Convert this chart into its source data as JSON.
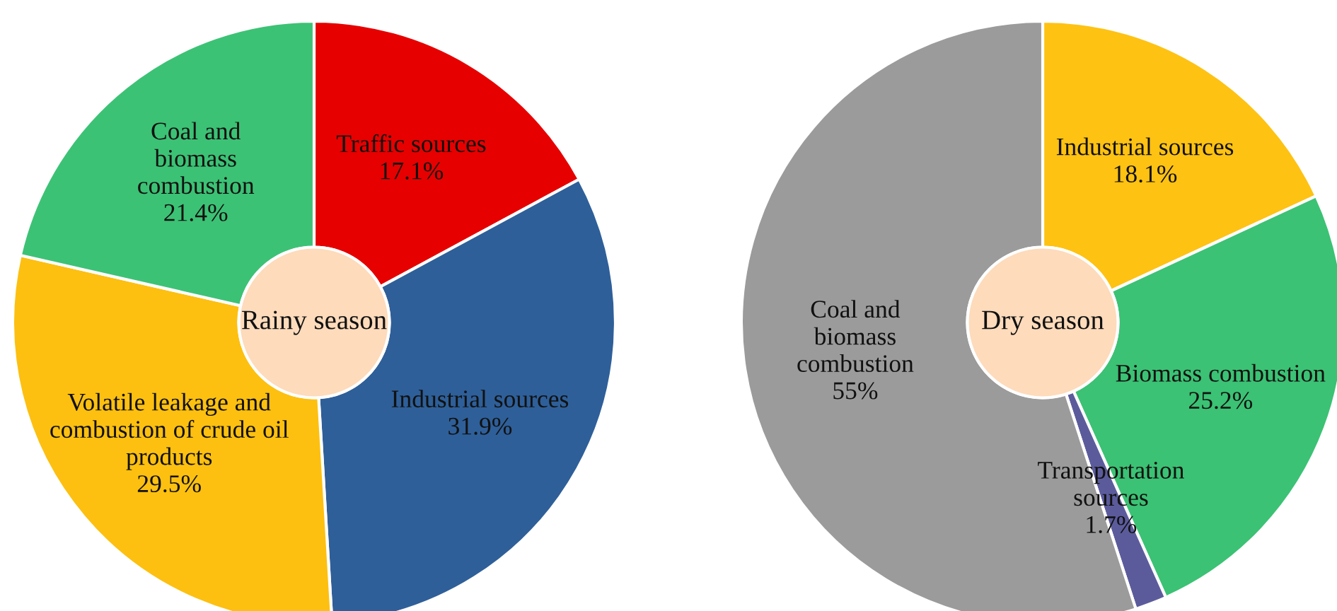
{
  "chart_data": [
    {
      "type": "donut",
      "title": "Rainy season",
      "categories": [
        "Traffic sources",
        "Industrial sources",
        "Volatile leakage and\ncombustion of crude oil\nproducts",
        "Coal and\nbiomass\ncombustion"
      ],
      "values": [
        17.1,
        31.9,
        29.5,
        21.4
      ],
      "value_labels": [
        "17.1%",
        "31.9%",
        "29.5%",
        "21.4%"
      ],
      "colors": [
        "#e60000",
        "#2e5f99",
        "#fdc010",
        "#3cc275"
      ]
    },
    {
      "type": "donut",
      "title": "Dry season",
      "categories": [
        "Industrial sources",
        "Biomass combustion",
        "Transportation\nsources",
        "Coal and\nbiomass\ncombustion"
      ],
      "values": [
        18.1,
        25.2,
        1.7,
        55
      ],
      "value_labels": [
        "18.1%",
        "25.2%",
        "1.7%",
        "55%"
      ],
      "colors": [
        "#fec213",
        "#3bc274",
        "#5b5b9c",
        "#9b9b9b"
      ]
    }
  ]
}
